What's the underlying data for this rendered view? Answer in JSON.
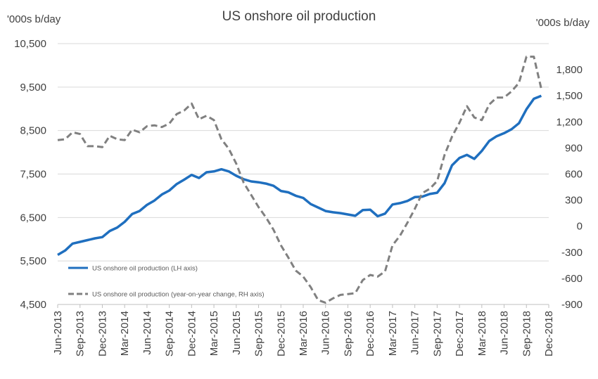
{
  "chart_data": {
    "type": "line",
    "title": "US onshore oil production",
    "left_axis": {
      "unit_label": "'000s b/day",
      "ylim": [
        4500,
        10500
      ],
      "ticks": [
        "10,500",
        "9,500",
        "8,500",
        "7,500",
        "6,500",
        "5,500",
        "4,500"
      ],
      "tick_values": [
        10500,
        9500,
        8500,
        7500,
        6500,
        5500,
        4500
      ]
    },
    "right_axis": {
      "unit_label": "'000s b/day",
      "ylim": [
        -900,
        2100
      ],
      "ticks": [
        "1,800",
        "1,500",
        "1,200",
        "900",
        "600",
        "300",
        "0",
        "-300",
        "-600",
        "-900"
      ],
      "tick_values": [
        1800,
        1500,
        1200,
        900,
        600,
        300,
        0,
        -300,
        -600,
        -900
      ]
    },
    "x_ticks": [
      "Jun-2013",
      "Sep-2013",
      "Dec-2013",
      "Mar-2014",
      "Jun-2014",
      "Sep-2014",
      "Dec-2014",
      "Mar-2015",
      "Jun-2015",
      "Sep-2015",
      "Dec-2015",
      "Mar-2016",
      "Jun-2016",
      "Sep-2016",
      "Dec-2016",
      "Mar-2017",
      "Jun-2017",
      "Sep-2017",
      "Dec-2017",
      "Mar-2018",
      "Jun-2018",
      "Sep-2018",
      "Dec-2018"
    ],
    "x_range": [
      "Jun-2013",
      "Dec-2018"
    ],
    "x": [
      "Jun-2013",
      "Jul-2013",
      "Aug-2013",
      "Sep-2013",
      "Oct-2013",
      "Nov-2013",
      "Dec-2013",
      "Jan-2014",
      "Feb-2014",
      "Mar-2014",
      "Apr-2014",
      "May-2014",
      "Jun-2014",
      "Jul-2014",
      "Aug-2014",
      "Sep-2014",
      "Oct-2014",
      "Nov-2014",
      "Dec-2014",
      "Jan-2015",
      "Feb-2015",
      "Mar-2015",
      "Apr-2015",
      "May-2015",
      "Jun-2015",
      "Jul-2015",
      "Aug-2015",
      "Sep-2015",
      "Oct-2015",
      "Nov-2015",
      "Dec-2015",
      "Jan-2016",
      "Feb-2016",
      "Mar-2016",
      "Apr-2016",
      "May-2016",
      "Jun-2016",
      "Jul-2016",
      "Aug-2016",
      "Sep-2016",
      "Oct-2016",
      "Nov-2016",
      "Dec-2016",
      "Jan-2017",
      "Feb-2017",
      "Mar-2017",
      "Apr-2017",
      "May-2017",
      "Jun-2017",
      "Jul-2017",
      "Aug-2017",
      "Sep-2017",
      "Oct-2017",
      "Nov-2017",
      "Dec-2017",
      "Jan-2018",
      "Feb-2018",
      "Mar-2018",
      "Apr-2018",
      "May-2018",
      "Jun-2018",
      "Jul-2018",
      "Aug-2018",
      "Sep-2018",
      "Oct-2018",
      "Nov-2018"
    ],
    "series": [
      {
        "name": "US onshore oil production (LH axis)",
        "axis": "left",
        "color": "#1f6fbf",
        "style": "solid",
        "values": [
          5640,
          5740,
          5900,
          5940,
          5980,
          6020,
          6050,
          6190,
          6270,
          6400,
          6580,
          6650,
          6790,
          6890,
          7030,
          7120,
          7270,
          7370,
          7480,
          7410,
          7540,
          7560,
          7610,
          7560,
          7460,
          7380,
          7330,
          7310,
          7280,
          7230,
          7110,
          7080,
          7000,
          6950,
          6810,
          6730,
          6650,
          6620,
          6600,
          6570,
          6540,
          6670,
          6680,
          6530,
          6590,
          6800,
          6830,
          6880,
          6970,
          6980,
          7040,
          7070,
          7290,
          7700,
          7870,
          7940,
          7850,
          8030,
          8260,
          8370,
          8440,
          8530,
          8670,
          8990,
          9230,
          9300
        ]
      },
      {
        "name": "US onshore oil production (year-on-year change, RH axis)",
        "axis": "right",
        "color": "#808080",
        "style": "dashed",
        "values": [
          990,
          1000,
          1080,
          1060,
          920,
          920,
          910,
          1040,
          1000,
          990,
          1110,
          1080,
          1150,
          1160,
          1140,
          1180,
          1290,
          1330,
          1410,
          1230,
          1270,
          1220,
          1000,
          890,
          720,
          500,
          360,
          220,
          100,
          -40,
          -220,
          -360,
          -510,
          -580,
          -700,
          -850,
          -880,
          -830,
          -790,
          -780,
          -770,
          -620,
          -560,
          -580,
          -520,
          -220,
          -110,
          40,
          200,
          380,
          430,
          520,
          820,
          1030,
          1190,
          1380,
          1250,
          1220,
          1400,
          1480,
          1480,
          1550,
          1650,
          1950,
          1950,
          1580
        ]
      }
    ],
    "legend_position": "lower-left",
    "grid": "horizontal"
  }
}
